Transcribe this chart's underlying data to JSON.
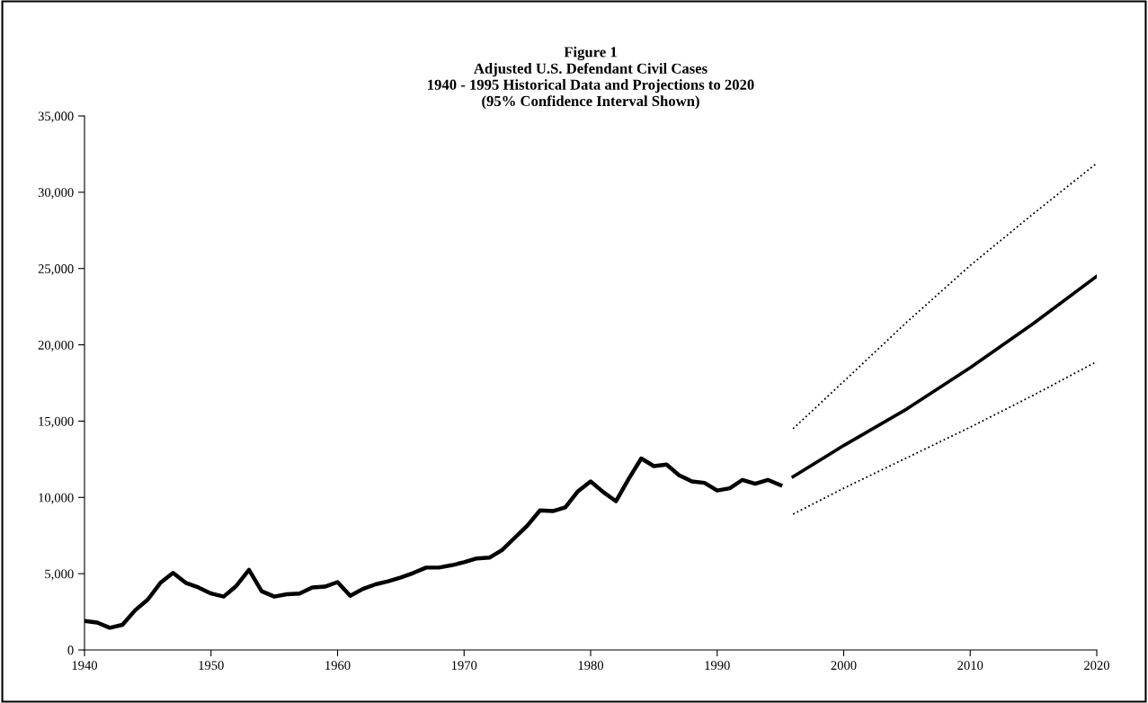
{
  "chart_data": {
    "type": "line",
    "title": "Figure 1\nAdjusted U.S. Defendant Civil Cases\n1940 - 1995 Historical Data and Projections to 2020\n(95% Confidence Interval Shown)",
    "xlim": [
      1940,
      2020
    ],
    "xticks": [
      1940,
      1950,
      1960,
      1970,
      1980,
      1990,
      2000,
      2010,
      2020
    ],
    "ylim": [
      0,
      35000
    ],
    "yticks": [
      {
        "value": 0,
        "label": "0"
      },
      {
        "value": 5000,
        "label": "5,000"
      },
      {
        "value": 10000,
        "label": "10,000"
      },
      {
        "value": 15000,
        "label": "15,000"
      },
      {
        "value": 20000,
        "label": "20,000"
      },
      {
        "value": 25000,
        "label": "25,000"
      },
      {
        "value": 30000,
        "label": "30,000"
      },
      {
        "value": 35000,
        "label": "35,000"
      }
    ],
    "grid": false,
    "legend": false,
    "marker": "none",
    "series": [
      {
        "color": "#000000",
        "line_style": "solid",
        "x": [
          1940,
          1941,
          1942,
          1943,
          1944,
          1945,
          1946,
          1947,
          1948,
          1949,
          1950,
          1951,
          1952,
          1953,
          1954,
          1955,
          1956,
          1957,
          1958,
          1959,
          1960,
          1961,
          1962,
          1963,
          1964,
          1965,
          1966,
          1967,
          1968,
          1969,
          1970,
          1971,
          1972,
          1973,
          1974,
          1975,
          1976,
          1977,
          1978,
          1979,
          1980,
          1981,
          1982,
          1983,
          1984,
          1985,
          1986,
          1987,
          1988,
          1989,
          1990,
          1991,
          1992,
          1993,
          1994,
          1995
        ],
        "values": [
          1900,
          1800,
          1450,
          1650,
          2600,
          3300,
          4400,
          5050,
          4400,
          4100,
          3700,
          3500,
          4200,
          5250,
          3850,
          3500,
          3650,
          3700,
          4100,
          4150,
          4450,
          3550,
          4000,
          4300,
          4500,
          4750,
          5050,
          5400,
          5400,
          5550,
          5750,
          6000,
          6050,
          6550,
          7350,
          8150,
          9150,
          9100,
          9350,
          10400,
          11050,
          10350,
          9750,
          11200,
          12550,
          12050,
          12150,
          11450,
          11050,
          10950,
          10450,
          10600,
          11150,
          10900,
          11150,
          10800
        ]
      },
      {
        "color": "#000000",
        "line_style": "solid",
        "x": [
          1996,
          2000,
          2005,
          2010,
          2015,
          2020
        ],
        "values": [
          11350,
          13400,
          15800,
          18500,
          21400,
          24500
        ]
      },
      {
        "color": "#000000",
        "line_style": "dotted",
        "x": [
          1996,
          2000,
          2005,
          2010,
          2015,
          2020
        ],
        "values": [
          14500,
          17600,
          21500,
          25200,
          28600,
          31900
        ]
      },
      {
        "color": "#000000",
        "line_style": "dotted",
        "x": [
          1996,
          2000,
          2005,
          2010,
          2015,
          2020
        ],
        "values": [
          8900,
          10600,
          12600,
          14600,
          16700,
          18900
        ]
      }
    ]
  }
}
